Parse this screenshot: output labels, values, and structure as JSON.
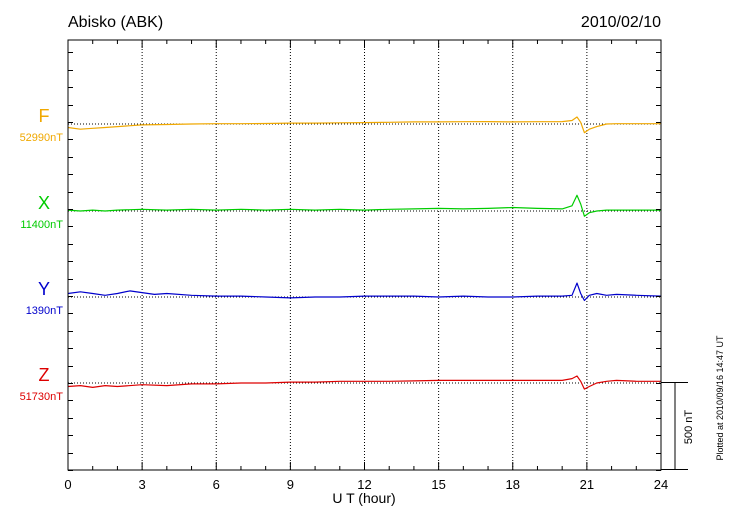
{
  "title": "Abisko (ABK)",
  "date": "2010/02/10",
  "footer_note": "Plotted at 2010/09/16 14:47 UT",
  "chart_data": {
    "type": "line",
    "title": "Abisko (ABK)",
    "xlabel": "U T (hour)",
    "ylabel": "",
    "xlim": [
      0,
      24
    ],
    "x_ticks": [
      "0",
      "3",
      "6",
      "9",
      "12",
      "15",
      "18",
      "21",
      "24"
    ],
    "grid": true,
    "scale_bar_label": "500 nT",
    "scale_bar_nT": 500,
    "series": [
      {
        "name": "F",
        "baseline_label": "52990nT",
        "color": "#f0a800",
        "x": [
          0,
          0.5,
          1,
          1.5,
          2,
          3,
          4,
          5,
          6,
          7,
          8,
          9,
          10,
          11,
          12,
          13,
          14,
          15,
          16,
          17,
          18,
          19,
          20,
          20.4,
          20.6,
          20.75,
          20.9,
          21.1,
          21.4,
          21.8,
          22.2,
          23,
          24
        ],
        "values": [
          -20,
          -30,
          -25,
          -20,
          -15,
          -5,
          -3,
          0,
          2,
          2,
          3,
          5,
          5,
          7,
          8,
          10,
          12,
          12,
          13,
          14,
          12,
          13,
          14,
          20,
          40,
          10,
          -50,
          -30,
          -15,
          0,
          2,
          2,
          2
        ]
      },
      {
        "name": "X",
        "baseline_label": "11400nT",
        "color": "#00cc00",
        "x": [
          0,
          0.5,
          1,
          1.5,
          2,
          3,
          4,
          5,
          6,
          7,
          8,
          9,
          10,
          11,
          12,
          13,
          14,
          15,
          16,
          17,
          18,
          19,
          20,
          20.4,
          20.6,
          20.75,
          20.9,
          21.1,
          21.4,
          21.8,
          22.2,
          23,
          24
        ],
        "values": [
          5,
          0,
          5,
          0,
          5,
          10,
          5,
          10,
          5,
          10,
          5,
          10,
          5,
          10,
          5,
          10,
          12,
          15,
          12,
          15,
          20,
          15,
          12,
          30,
          90,
          40,
          -30,
          -10,
          0,
          5,
          5,
          5,
          5
        ]
      },
      {
        "name": "Y",
        "baseline_label": "1390nT",
        "color": "#0000cc",
        "x": [
          0,
          0.5,
          1,
          1.5,
          2,
          2.5,
          3,
          3.5,
          4,
          5,
          6,
          7,
          8,
          9,
          10,
          11,
          12,
          13,
          14,
          15,
          16,
          17,
          18,
          19,
          20,
          20.4,
          20.6,
          20.75,
          20.9,
          21.1,
          21.4,
          21.8,
          22.2,
          23,
          24
        ],
        "values": [
          20,
          30,
          20,
          10,
          20,
          35,
          25,
          15,
          20,
          10,
          5,
          5,
          0,
          -5,
          0,
          0,
          5,
          5,
          5,
          0,
          5,
          0,
          0,
          5,
          5,
          10,
          80,
          20,
          -20,
          10,
          20,
          10,
          15,
          10,
          5
        ]
      },
      {
        "name": "Z",
        "baseline_label": "51730nT",
        "color": "#dd0000",
        "x": [
          0,
          0.5,
          1,
          1.5,
          2,
          3,
          4,
          5,
          6,
          7,
          8,
          9,
          10,
          11,
          12,
          13,
          14,
          15,
          16,
          17,
          18,
          19,
          20,
          20.4,
          20.6,
          20.75,
          20.9,
          21.1,
          21.4,
          21.8,
          22.2,
          23,
          24
        ],
        "values": [
          -20,
          -15,
          -25,
          -15,
          -20,
          -10,
          -15,
          -5,
          -5,
          0,
          0,
          5,
          5,
          10,
          10,
          10,
          12,
          15,
          15,
          15,
          15,
          15,
          15,
          25,
          40,
          10,
          -35,
          -20,
          0,
          10,
          15,
          10,
          10
        ]
      }
    ]
  }
}
